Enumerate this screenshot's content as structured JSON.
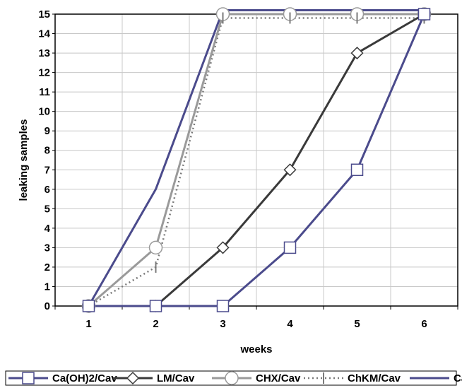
{
  "chart_data": {
    "type": "line",
    "xlabel": "weeks",
    "ylabel": "leaking samples",
    "x": [
      1,
      2,
      3,
      4,
      5,
      6
    ],
    "ylim": [
      0,
      15
    ],
    "xlim": [
      0.5,
      6.5
    ],
    "yticks": [
      0,
      1,
      2,
      3,
      4,
      5,
      6,
      7,
      8,
      9,
      10,
      11,
      12,
      13,
      14,
      15
    ],
    "grid": true,
    "legend_position": "bottom",
    "series": [
      {
        "name": "Ca(OH)2/Cav",
        "values": [
          0,
          0,
          0,
          3,
          7,
          15
        ],
        "color": "#4b4b8c",
        "marker": "square",
        "dash": "solid"
      },
      {
        "name": "LM/Cav",
        "values": [
          0,
          0,
          3,
          7,
          13,
          15
        ],
        "color": "#3a3a3a",
        "marker": "diamond",
        "dash": "solid"
      },
      {
        "name": "CHX/Cav",
        "values": [
          0,
          3,
          15,
          15,
          15,
          15
        ],
        "color": "#9a9a9a",
        "marker": "circle",
        "dash": "solid"
      },
      {
        "name": "ChKM/Cav",
        "values": [
          0,
          2,
          14.8,
          14.8,
          14.8,
          14.8
        ],
        "color": "#7a7a7a",
        "marker": "bar",
        "dash": "dotted"
      },
      {
        "name": "Cav",
        "values": [
          0,
          6,
          15.2,
          15.2,
          15.2,
          15.2
        ],
        "color": "#4b4b8c",
        "marker": "none",
        "dash": "solid"
      }
    ]
  }
}
